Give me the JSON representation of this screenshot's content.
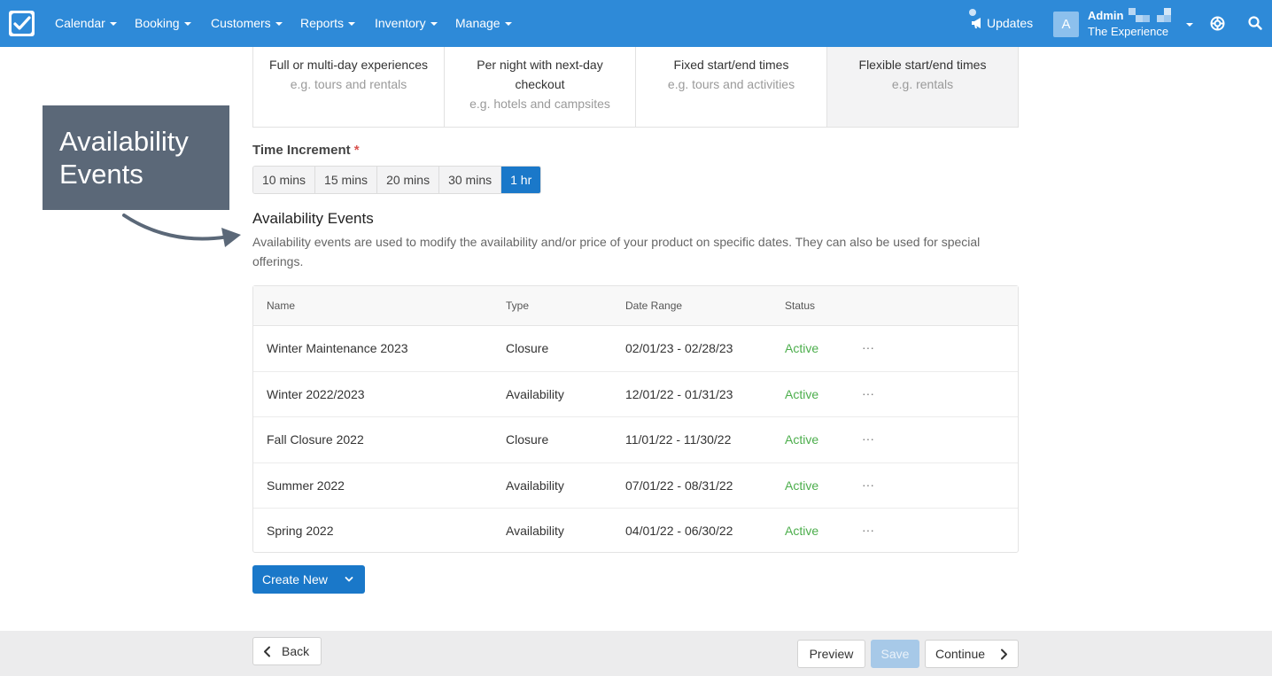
{
  "nav": {
    "items": [
      {
        "label": "Calendar"
      },
      {
        "label": "Booking"
      },
      {
        "label": "Customers"
      },
      {
        "label": "Reports"
      },
      {
        "label": "Inventory"
      },
      {
        "label": "Manage"
      }
    ],
    "updates_label": "Updates",
    "avatar_initial": "A",
    "user_name": "Admin",
    "org_name": "The Experience",
    "colors": {
      "bar": "#2e8ad8"
    }
  },
  "experience_types": [
    {
      "title": "Full or multi-day experiences",
      "subtitle": "e.g. tours and rentals"
    },
    {
      "title": "Per night with next-day checkout",
      "subtitle": "e.g. hotels and campsites"
    },
    {
      "title": "Fixed start/end times",
      "subtitle": "e.g. tours and activities"
    },
    {
      "title": "Flexible start/end times",
      "subtitle": "e.g. rentals",
      "selected": true
    }
  ],
  "time_increment": {
    "label": "Time Increment",
    "required_mark": "*",
    "options": [
      "10 mins",
      "15 mins",
      "20 mins",
      "30 mins",
      "1 hr"
    ],
    "selected": "1 hr"
  },
  "callout": {
    "text": "Availability Events"
  },
  "availability_events": {
    "title": "Availability Events",
    "description": "Availability events are used to modify the availability and/or price of your product on specific dates. They can also be used for special offerings.",
    "columns": [
      "Name",
      "Type",
      "Date Range",
      "Status"
    ],
    "rows": [
      {
        "name": "Winter Maintenance 2023",
        "type": "Closure",
        "date_range": "02/01/23 - 02/28/23",
        "status": "Active"
      },
      {
        "name": "Winter 2022/2023",
        "type": "Availability",
        "date_range": "12/01/22 - 01/31/23",
        "status": "Active"
      },
      {
        "name": "Fall Closure 2022",
        "type": "Closure",
        "date_range": "11/01/22 - 11/30/22",
        "status": "Active"
      },
      {
        "name": "Summer 2022",
        "type": "Availability",
        "date_range": "07/01/22 - 08/31/22",
        "status": "Active"
      },
      {
        "name": "Spring 2022",
        "type": "Availability",
        "date_range": "04/01/22 - 06/30/22",
        "status": "Active"
      }
    ],
    "more_label": "···",
    "create_label": "Create New"
  },
  "footer": {
    "back_label": "Back",
    "preview_label": "Preview",
    "save_label": "Save",
    "continue_label": "Continue"
  }
}
